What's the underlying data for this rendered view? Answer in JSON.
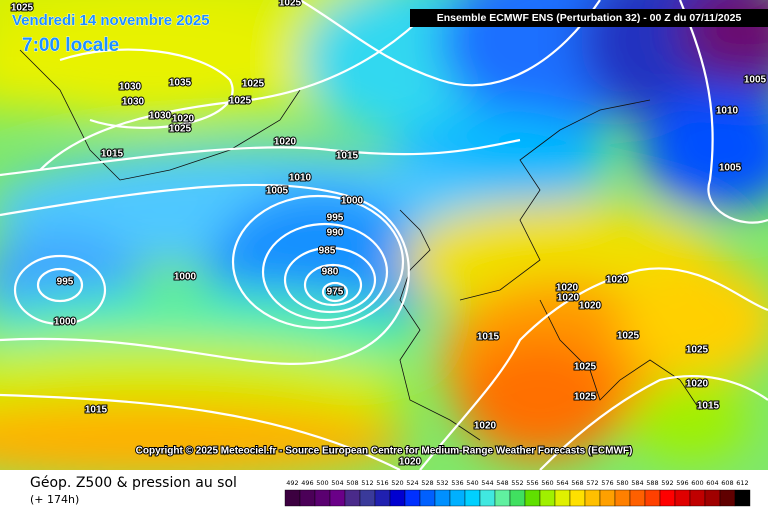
{
  "header": {
    "date": "Vendredi 14 novembre 2025",
    "local_time": "7:00 locale",
    "run": "Ensemble ECMWF ENS  (Perturbation 32)  - 00 Z du 07/11/2025",
    "copyright": "Copyright © 2025 Meteociel.fr - Source European Centre for Medium-Range Weather Forecasts (ECMWF)"
  },
  "footer": {
    "title": "Géop. Z500 & pression au sol",
    "lead": "(+ 174h)"
  },
  "isobar_labels": [
    1025,
    1025,
    1030,
    1035,
    1030,
    1025,
    1025,
    1030,
    1020,
    1025,
    1015,
    1020,
    1015,
    1010,
    1005,
    1000,
    995,
    990,
    985,
    980,
    975,
    995,
    1000,
    1000,
    1015,
    1020,
    1020,
    1025,
    1025,
    1020,
    1020,
    1020,
    1020,
    1025,
    1025,
    1020,
    1015,
    1015,
    1010,
    1005,
    1005
  ],
  "legend": {
    "values": [
      492,
      496,
      500,
      504,
      508,
      512,
      516,
      520,
      524,
      528,
      532,
      536,
      540,
      544,
      548,
      552,
      556,
      560,
      564,
      568,
      572,
      576,
      580,
      584,
      588,
      592,
      596,
      600,
      604,
      608,
      612
    ],
    "colors": [
      "#3c0040",
      "#4b0058",
      "#5a0070",
      "#6a0088",
      "#4a2a8a",
      "#3a3a9a",
      "#2020b0",
      "#0000d0",
      "#0030ff",
      "#0060ff",
      "#0090ff",
      "#00b0ff",
      "#00d0ff",
      "#40e8e0",
      "#60f0a0",
      "#40e060",
      "#60e000",
      "#a0f000",
      "#e0f000",
      "#ffe000",
      "#ffc000",
      "#ffa000",
      "#ff8000",
      "#ff6000",
      "#ff4000",
      "#ff0000",
      "#e00000",
      "#c00000",
      "#a00000",
      "#600000",
      "#000000"
    ]
  }
}
